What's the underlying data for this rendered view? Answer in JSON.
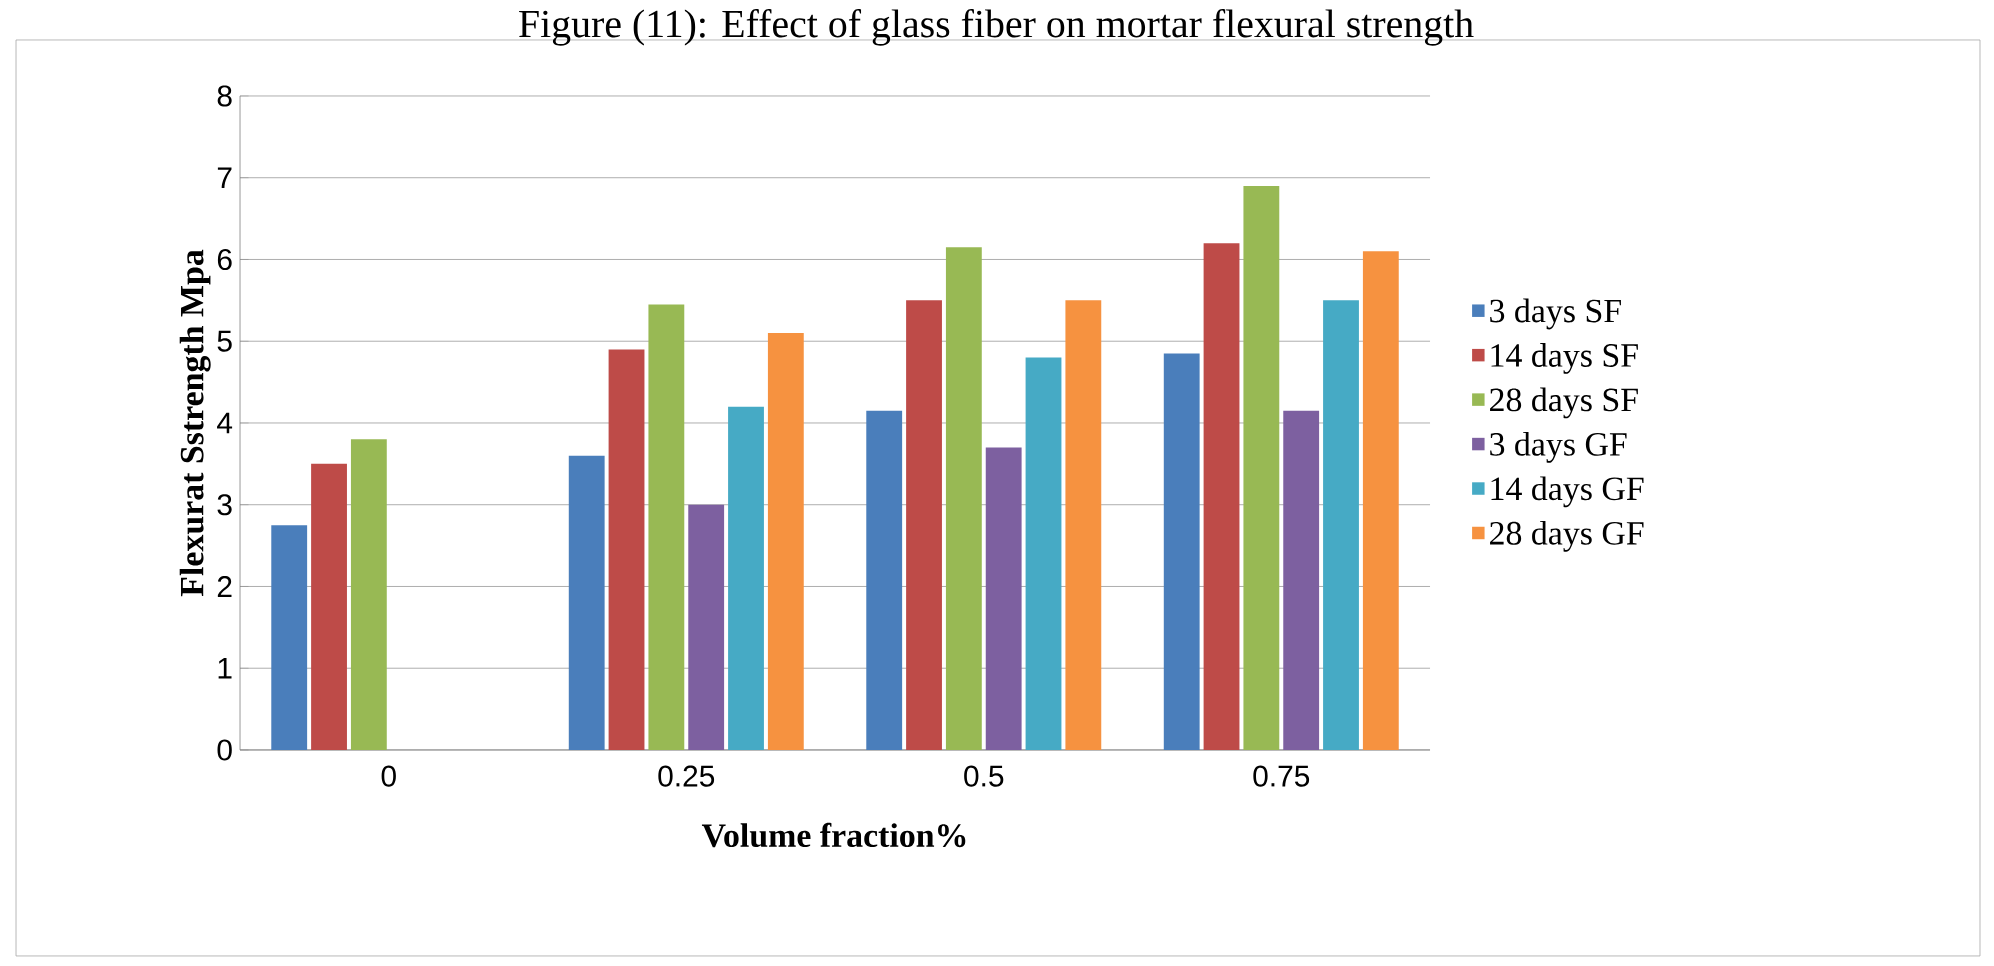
{
  "chart_data": {
    "type": "bar",
    "title": "Figure (11): Effect of glass fiber on mortar flexural strength",
    "xlabel": "Volume fraction%",
    "ylabel": "Flexurat Sstrength Mpa",
    "categories": [
      "0",
      "0.25",
      "0.5",
      "0.75"
    ],
    "series": [
      {
        "name": "3 days SF",
        "color": "#4a7ebb",
        "values": [
          2.75,
          3.6,
          4.15,
          4.85
        ]
      },
      {
        "name": "14 days SF",
        "color": "#be4b48",
        "values": [
          3.5,
          4.9,
          5.5,
          6.2
        ]
      },
      {
        "name": "28 days SF",
        "color": "#98b954",
        "values": [
          3.8,
          5.45,
          6.15,
          6.9
        ]
      },
      {
        "name": "3 days  GF",
        "color": "#7d60a0",
        "values": [
          null,
          3.0,
          3.7,
          4.15
        ]
      },
      {
        "name": "14 days GF",
        "color": "#46aac5",
        "values": [
          null,
          4.2,
          4.8,
          5.5
        ]
      },
      {
        "name": "28 days GF",
        "color": "#f69240",
        "values": [
          null,
          5.1,
          5.5,
          6.1
        ]
      }
    ],
    "ylim": [
      0,
      8
    ],
    "yticks": [
      0,
      1,
      2,
      3,
      4,
      5,
      6,
      7,
      8
    ],
    "grid": "y",
    "legend": "right"
  }
}
